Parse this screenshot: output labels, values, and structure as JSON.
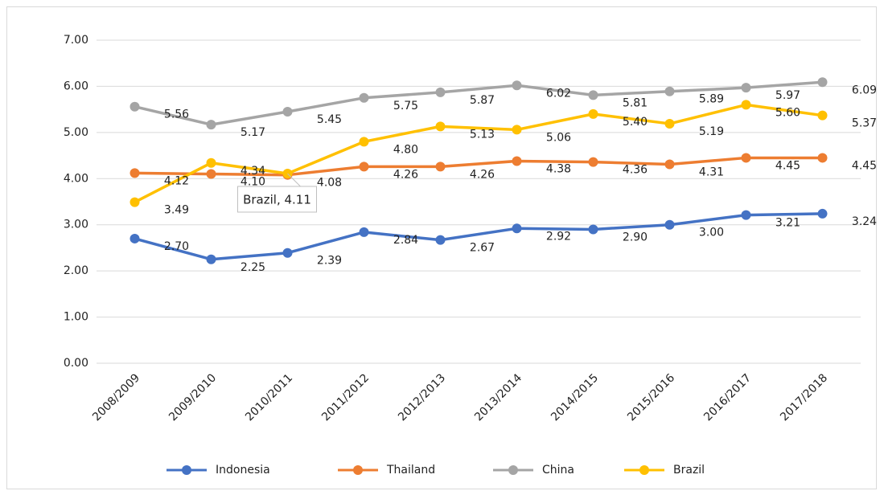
{
  "chart_data": {
    "type": "line",
    "categories": [
      "2008/2009",
      "2009/2010",
      "2010/2011",
      "2011/2012",
      "2012/2013",
      "2013/2014",
      "2014/2015",
      "2015/2016",
      "2016/2017",
      "2017/2018"
    ],
    "series": [
      {
        "name": "Indonesia",
        "color": "#4472c4",
        "values": [
          2.7,
          2.25,
          2.39,
          2.84,
          2.67,
          2.92,
          2.9,
          3.0,
          3.21,
          3.24
        ],
        "value_labels": [
          "2.70",
          "2.25",
          "2.39",
          "2.84",
          "2.67",
          "2.92",
          "2.90",
          "3.00",
          "3.21",
          "3.24"
        ]
      },
      {
        "name": "Thailand",
        "color": "#ed7d31",
        "values": [
          4.12,
          4.1,
          4.08,
          4.26,
          4.26,
          4.38,
          4.36,
          4.31,
          4.45,
          4.45
        ],
        "value_labels": [
          "4.12",
          "4.10",
          "4.08",
          "4.26",
          "4.26",
          "4.38",
          "4.36",
          "4.31",
          "4.45",
          "4.45"
        ]
      },
      {
        "name": "China",
        "color": "#a5a5a5",
        "values": [
          5.56,
          5.17,
          5.45,
          5.75,
          5.87,
          6.02,
          5.81,
          5.89,
          5.97,
          6.09
        ],
        "value_labels": [
          "5.56",
          "5.17",
          "5.45",
          "5.75",
          "5.87",
          "6.02",
          "5.81",
          "5.89",
          "5.97",
          "6.09"
        ]
      },
      {
        "name": "Brazil",
        "color": "#ffc000",
        "values": [
          3.49,
          4.34,
          4.11,
          4.8,
          5.13,
          5.06,
          5.4,
          5.19,
          5.6,
          5.37
        ],
        "value_labels": [
          "3.49",
          "4.34",
          "Brazil, 4.11",
          "4.80",
          "5.13",
          "5.06",
          "5.40",
          "5.19",
          "5.60",
          "5.37"
        ]
      }
    ],
    "ylim": [
      0,
      7
    ],
    "yticks": [
      {
        "value": 0,
        "label": "0.00"
      },
      {
        "value": 1,
        "label": "1.00"
      },
      {
        "value": 2,
        "label": "2.00"
      },
      {
        "value": 3,
        "label": "3.00"
      },
      {
        "value": 4,
        "label": "4.00"
      },
      {
        "value": 5,
        "label": "5.00"
      },
      {
        "value": 6,
        "label": "6.00"
      },
      {
        "value": 7,
        "label": "7.00"
      }
    ],
    "grid": true,
    "legend": "bottom"
  }
}
